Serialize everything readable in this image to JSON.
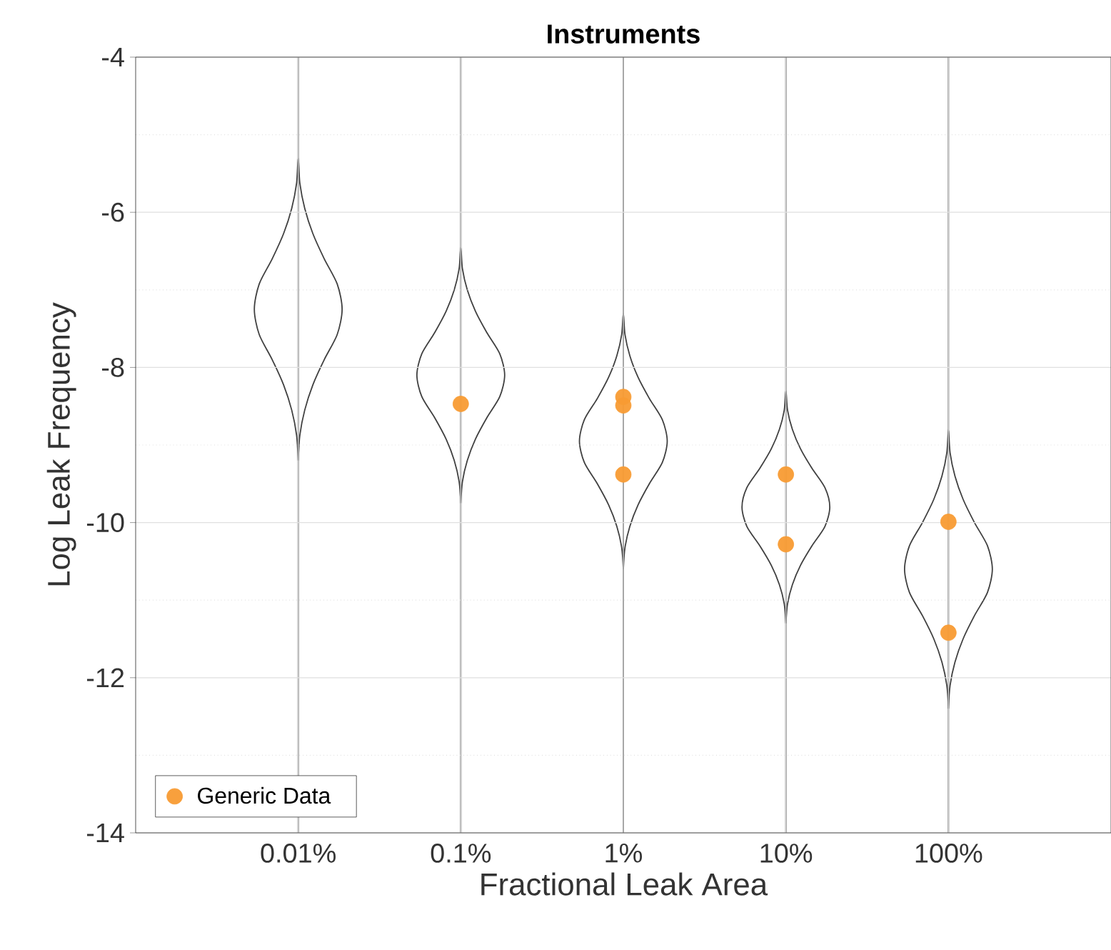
{
  "chart_data": {
    "type": "scatter",
    "title": "Instruments",
    "xlabel": "Fractional Leak Area",
    "ylabel": "Log Leak Frequency",
    "log": "x",
    "xlim": [
      0.001,
      1000
    ],
    "xticks": [
      {
        "value": 0.01,
        "label": "0.01%"
      },
      {
        "value": 0.1,
        "label": "0.1%"
      },
      {
        "value": 1,
        "label": "1%"
      },
      {
        "value": 10,
        "label": "10%"
      },
      {
        "value": 100,
        "label": "100%"
      }
    ],
    "ylim": [
      -14,
      -4
    ],
    "yticks": [
      -14,
      -12,
      -10,
      -8,
      -6,
      -4
    ],
    "grid": true,
    "legend": "bottom left",
    "marker": "circle",
    "series": [
      {
        "name": "Generic Data",
        "color": "#f89b33",
        "x": [
          0.1,
          1,
          1,
          1,
          10,
          10,
          100,
          100
        ],
        "values": [
          -8.47,
          -8.38,
          -8.49,
          -9.38,
          -9.38,
          -10.28,
          -9.99,
          -11.42
        ]
      }
    ]
  }
}
